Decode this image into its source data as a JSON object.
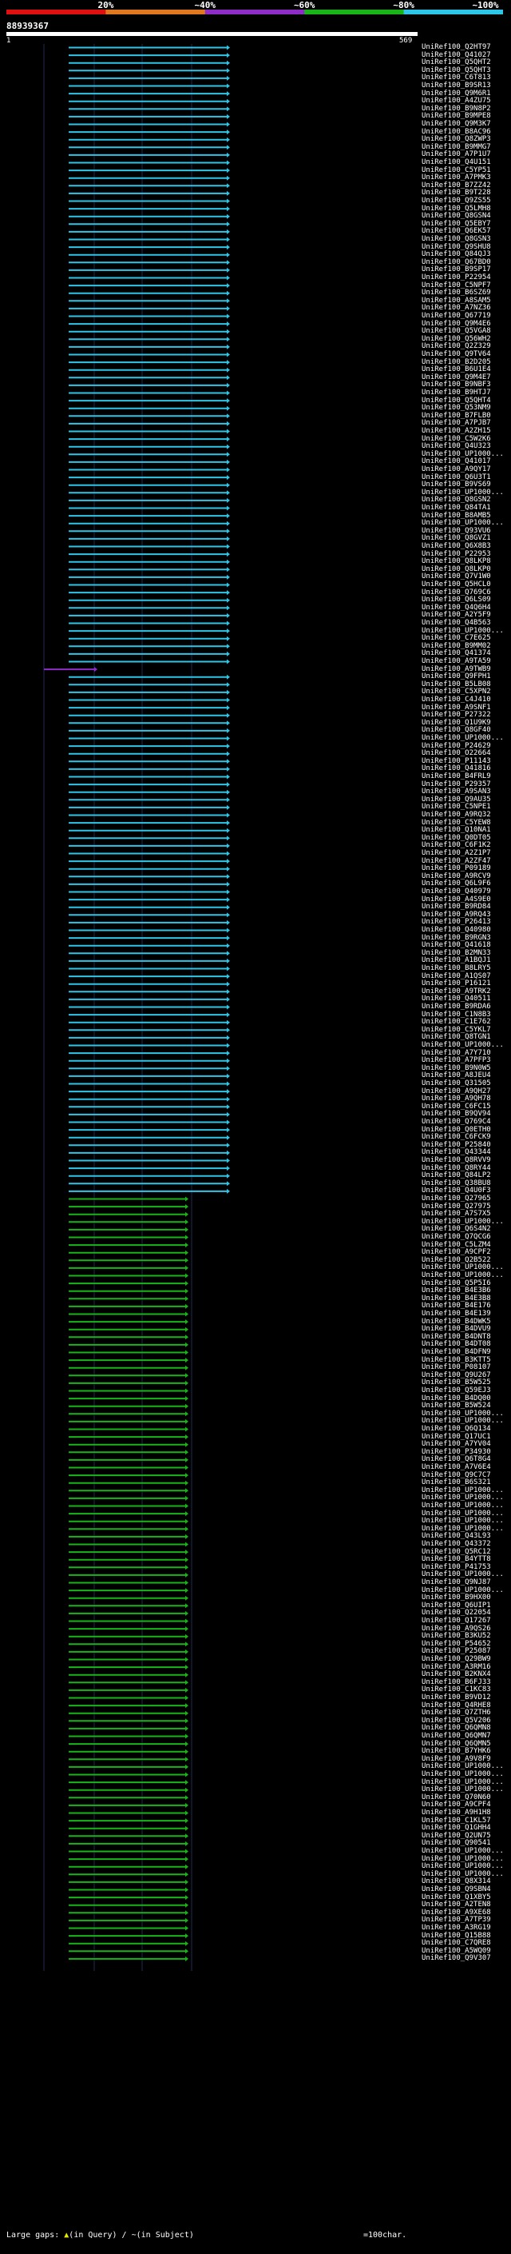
{
  "legend": {
    "percent_labels": [
      "20%",
      "~40%",
      "~60%",
      "~80%",
      "~100%"
    ],
    "colors": [
      "#e01010",
      "#e07820",
      "#8e2cc8",
      "#18b418",
      "#2ec6e8"
    ]
  },
  "query_id": "88939367",
  "ruler": {
    "start": "1",
    "end": "569"
  },
  "footer": {
    "large_gaps_label": "Large gaps:",
    "query_gap_label": "(in Query)",
    "subject_gap_label": "(in Subject)",
    "scale_label": "=100char."
  },
  "hits": [
    "UniRef100_Q2HT97",
    "UniRef100_Q41027",
    "UniRef100_Q5QHT2",
    "UniRef100_Q5QHT3",
    "UniRef100_C6T813",
    "UniRef100_B9SR13",
    "UniRef100_Q9M6R1",
    "UniRef100_A4ZU75",
    "UniRef100_B9N8P2",
    "UniRef100_B9MPE8",
    "UniRef100_Q9M3K7",
    "UniRef100_B8AC96",
    "UniRef100_Q8ZWP3",
    "UniRef100_B9MMG7",
    "UniRef100_A7P1U7",
    "UniRef100_Q4U151",
    "UniRef100_C5YP51",
    "UniRef100_A7PMK3",
    "UniRef100_B7ZZ42",
    "UniRef100_B9T228",
    "UniRef100_Q9ZS55",
    "UniRef100_Q5LMH8",
    "UniRef100_Q8GSN4",
    "UniRef100_Q5EBY7",
    "UniRef100_Q6EK57",
    "UniRef100_Q8GSN3",
    "UniRef100_Q9SHU8",
    "UniRef100_Q84QJ3",
    "UniRef100_Q67BD0",
    "UniRef100_B9SP17",
    "UniRef100_P22954",
    "UniRef100_C5NPF7",
    "UniRef100_B6SZ69",
    "UniRef100_A8SAM5",
    "UniRef100_A7NZ36",
    "UniRef100_Q67719",
    "UniRef100_Q9M4E6",
    "UniRef100_Q5VGA8",
    "UniRef100_Q56WH2",
    "UniRef100_Q2Z329",
    "UniRef100_Q9TV64",
    "UniRef100_B2D205",
    "UniRef100_B6U1E4",
    "UniRef100_Q9M4E7",
    "UniRef100_B9NBF3",
    "UniRef100_B9HTJ7",
    "UniRef100_Q5QHT4",
    "UniRef100_Q53NM9",
    "UniRef100_B7FLB0",
    "UniRef100_A7PJB7",
    "UniRef100_A2ZH15",
    "UniRef100_C5W2K6",
    "UniRef100_Q4U323",
    "UniRef100_UP1000...",
    "UniRef100_Q41017",
    "UniRef100_A9QY17",
    "UniRef100_Q6U3T1",
    "UniRef100_B9VS69",
    "UniRef100_UP1000...",
    "UniRef100_Q8GSN2",
    "UniRef100_Q84TA1",
    "UniRef100_B8AMB5",
    "UniRef100_UP1000...",
    "UniRef100_Q93VU6",
    "UniRef100_Q8GVZ1",
    "UniRef100_Q6X8B3",
    "UniRef100_P22953",
    "UniRef100_Q8LKP8",
    "UniRef100_Q8LKP0",
    "UniRef100_Q7V1W0",
    "UniRef100_Q5HCL0",
    "UniRef100_Q769C6",
    "UniRef100_Q6LS09",
    "UniRef100_Q4Q6H4",
    "UniRef100_A2Y5F9",
    "UniRef100_Q4B563",
    "UniRef100_UP1000...",
    "UniRef100_C7E625",
    "UniRef100_B9MM02",
    "UniRef100_Q41374",
    "UniRef100_A9TA59",
    "UniRef100_A9TWB9",
    "UniRef100_Q9FPH1",
    "UniRef100_B5LB08",
    "UniRef100_C5XPN2",
    "UniRef100_C4J410",
    "UniRef100_A9SNF1",
    "UniRef100_P27322",
    "UniRef100_Q1U9K9",
    "UniRef100_Q8GF40",
    "UniRef100_UP1000...",
    "UniRef100_P24629",
    "UniRef100_O22664",
    "UniRef100_P11143",
    "UniRef100_Q41816",
    "UniRef100_B4FRL9",
    "UniRef100_P29357",
    "UniRef100_A9SAN3",
    "UniRef100_Q9AU35",
    "UniRef100_C5NPE1",
    "UniRef100_A9RQ32",
    "UniRef100_C5YEW8",
    "UniRef100_Q10NA1",
    "UniRef100_Q0DT05",
    "UniRef100_C6F1K2",
    "UniRef100_A2Z1P7",
    "UniRef100_A2ZF47",
    "UniRef100_P09189",
    "UniRef100_A9RCV9",
    "UniRef100_Q6L9F6",
    "UniRef100_Q40979",
    "UniRef100_A4S9E0",
    "UniRef100_B9RD84",
    "UniRef100_A9RQ43",
    "UniRef100_P26413",
    "UniRef100_Q40980",
    "UniRef100_B9RGN3",
    "UniRef100_Q41618",
    "UniRef100_B2MN33",
    "UniRef100_A1BQJ1",
    "UniRef100_B8LRY5",
    "UniRef100_A1QS07",
    "UniRef100_P16121",
    "UniRef100_A9TRK2",
    "UniRef100_Q40511",
    "UniRef100_B9RDA6",
    "UniRef100_C1N8B3",
    "UniRef100_C1E762",
    "UniRef100_C5YKL7",
    "UniRef100_Q8TGN1",
    "UniRef100_UP1000...",
    "UniRef100_A7Y710",
    "UniRef100_A7PFP3",
    "UniRef100_B9N0W5",
    "UniRef100_A8JEU4",
    "UniRef100_Q31505",
    "UniRef100_A9QH27",
    "UniRef100_A9QH78",
    "UniRef100_C6FC15",
    "UniRef100_B9QV94",
    "UniRef100_Q769C4",
    "UniRef100_Q0ETH0",
    "UniRef100_C6FCK9",
    "UniRef100_P25840",
    "UniRef100_Q43344",
    "UniRef100_Q8RVV9",
    "UniRef100_Q8RY44",
    "UniRef100_Q84LP2",
    "UniRef100_Q38BU8",
    "UniRef100_Q4U0F3",
    "UniRef100_Q27965",
    "UniRef100_Q27975",
    "UniRef100_A7S7X5",
    "UniRef100_UP1000...",
    "UniRef100_Q6S4N2",
    "UniRef100_Q7QCG6",
    "UniRef100_C5LZM4",
    "UniRef100_A9CPF2",
    "UniRef100_Q2B522",
    "UniRef100_UP1000...",
    "UniRef100_UP1000...",
    "UniRef100_Q5P5I6",
    "UniRef100_B4E3B6",
    "UniRef100_B4E3B8",
    "UniRef100_B4E176",
    "UniRef100_B4E139",
    "UniRef100_B4DWK5",
    "UniRef100_B4DVU9",
    "UniRef100_B4DNT8",
    "UniRef100_B4DT08",
    "UniRef100_B4DFN9",
    "UniRef100_B3KTT5",
    "UniRef100_P08107",
    "UniRef100_Q9U267",
    "UniRef100_B5W525",
    "UniRef100_Q59EJ3",
    "UniRef100_B4DQ00",
    "UniRef100_B5W524",
    "UniRef100_UP1000...",
    "UniRef100_UP1000...",
    "UniRef100_Q6Q134",
    "UniRef100_Q17UC1",
    "UniRef100_A7YV04",
    "UniRef100_P34930",
    "UniRef100_Q6T8G4",
    "UniRef100_A7V6E4",
    "UniRef100_Q9C7C7",
    "UniRef100_B6S321",
    "UniRef100_UP1000...",
    "UniRef100_UP1000...",
    "UniRef100_UP1000...",
    "UniRef100_UP1000...",
    "UniRef100_UP1000...",
    "UniRef100_UP1000...",
    "UniRef100_Q43L93",
    "UniRef100_Q43372",
    "UniRef100_Q5RC12",
    "UniRef100_B4YTT8",
    "UniRef100_P41753",
    "UniRef100_UP1000...",
    "UniRef100_Q9NJ87",
    "UniRef100_UP1000...",
    "UniRef100_B9HX00",
    "UniRef100_Q6UIP1",
    "UniRef100_Q22054",
    "UniRef100_Q17267",
    "UniRef100_A9QS26",
    "UniRef100_B3KU52",
    "UniRef100_P54652",
    "UniRef100_P25087",
    "UniRef100_Q29BW9",
    "UniRef100_A3RM16",
    "UniRef100_B2KNX4",
    "UniRef100_B6FJ33",
    "UniRef100_C1KC83",
    "UniRef100_B9VD12",
    "UniRef100_Q4RHE8",
    "UniRef100_Q7ZTH6",
    "UniRef100_Q5V206",
    "UniRef100_Q6QMN8",
    "UniRef100_Q6QMN7",
    "UniRef100_Q6QMN5",
    "UniRef100_B7YHK6",
    "UniRef100_A9V8F9",
    "UniRef100_UP1000...",
    "UniRef100_UP1000...",
    "UniRef100_UP1000...",
    "UniRef100_UP1000...",
    "UniRef100_Q70N60",
    "UniRef100_A9CPF4",
    "UniRef100_A9H1H8",
    "UniRef100_C1KL57",
    "UniRef100_Q1GHH4",
    "UniRef100_Q2UN75",
    "UniRef100_Q90541",
    "UniRef100_UP1000...",
    "UniRef100_UP1000...",
    "UniRef100_UP1000...",
    "UniRef100_UP1000...",
    "UniRef100_Q8X314",
    "UniRef100_Q9SBN4",
    "UniRef100_Q1XBY5",
    "UniRef100_A2TEN8",
    "UniRef100_A9XE68",
    "UniRef100_A7TP39",
    "UniRef100_A3RG19",
    "UniRef100_Q15B88",
    "UniRef100_C7QRE8",
    "UniRef100_A5WQ09",
    "UniRef100_Q9V307"
  ]
}
